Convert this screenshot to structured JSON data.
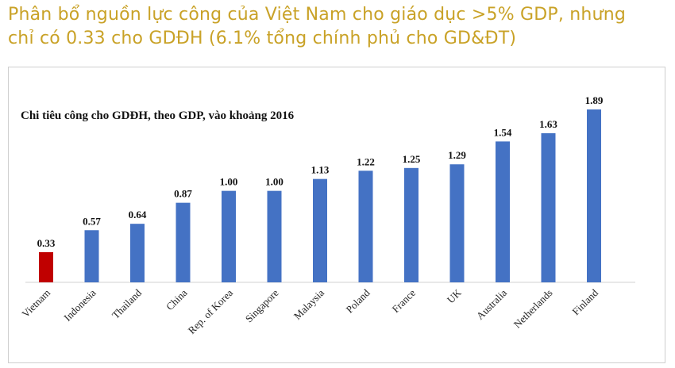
{
  "headline": {
    "line1": "Phân bổ nguồn lực công của Việt Nam cho giáo dục >5% GDP, nhưng",
    "line2": "chỉ có 0.33 cho GDĐH (6.1% tổng chính phủ cho GD&ĐT)"
  },
  "colors": {
    "headline": "#c9a227",
    "bar": "#4472c4",
    "highlight": "#c00000"
  },
  "chart_data": {
    "type": "bar",
    "title": "Chi tiêu công cho GDĐH, theo GDP, vào khoảng 2016",
    "categories": [
      "Vietnam",
      "Indonesia",
      "Thailand",
      "China",
      "Rep. of Korea",
      "Singapore",
      "Malaysia",
      "Poland",
      "France",
      "UK",
      "Australia",
      "Netherlands",
      "Finland"
    ],
    "values": [
      0.33,
      0.57,
      0.64,
      0.87,
      1.0,
      1.0,
      1.13,
      1.22,
      1.25,
      1.29,
      1.54,
      1.63,
      1.89
    ],
    "value_labels": [
      "0.33",
      "0.57",
      "0.64",
      "0.87",
      "1.00",
      "1.00",
      "1.13",
      "1.22",
      "1.25",
      "1.29",
      "1.54",
      "1.63",
      "1.89"
    ],
    "highlight": "Vietnam",
    "ylim": [
      0,
      1.89
    ],
    "grid": false,
    "legend": "none"
  }
}
